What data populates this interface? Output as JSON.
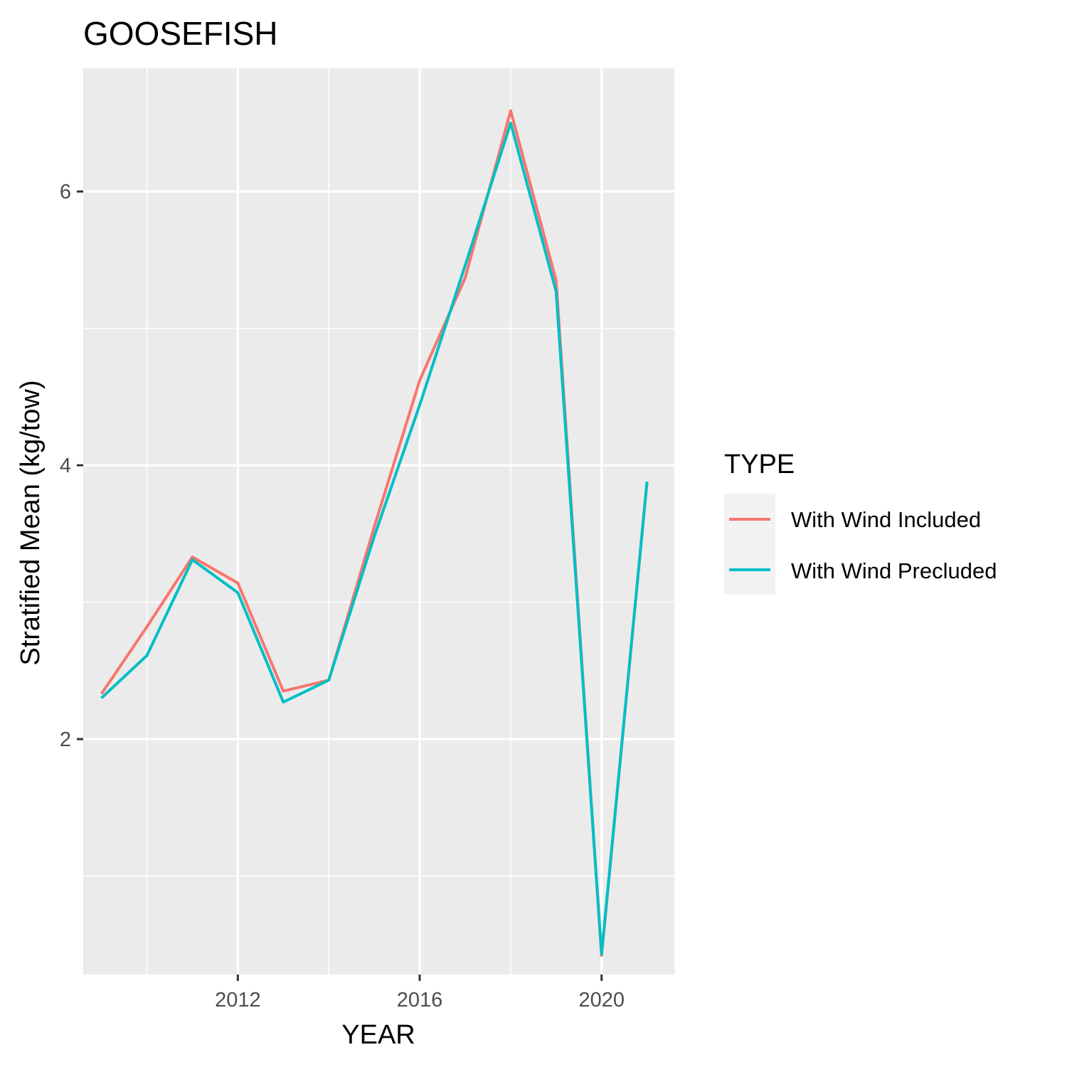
{
  "chart_data": {
    "type": "line",
    "title": "GOOSEFISH",
    "xlabel": "YEAR",
    "ylabel": "Stratified Mean (kg/tow)",
    "xlim": [
      2008.6,
      2021.6
    ],
    "ylim": [
      0.28,
      6.9
    ],
    "x_ticks": [
      2012,
      2016,
      2020
    ],
    "x_tick_labels": [
      "2012",
      "2016",
      "2020"
    ],
    "y_ticks": [
      2,
      4,
      6
    ],
    "y_tick_labels": [
      "2",
      "4",
      "6"
    ],
    "grid": true,
    "legend": {
      "title": "TYPE",
      "placement": "right"
    },
    "x": [
      2009,
      2010,
      2011,
      2012,
      2013,
      2014,
      2015,
      2016,
      2017,
      2018,
      2019,
      2020,
      2021
    ],
    "series": [
      {
        "name": "With Wind Included",
        "color": "#F8766D",
        "values": [
          2.33,
          2.82,
          3.33,
          3.14,
          2.35,
          2.43,
          3.55,
          4.62,
          5.37,
          6.59,
          5.35,
          0.42,
          3.88
        ]
      },
      {
        "name": "With Wind Precluded",
        "color": "#00BFC4",
        "values": [
          2.3,
          2.61,
          3.31,
          3.07,
          2.27,
          2.43,
          3.48,
          4.44,
          5.46,
          6.5,
          5.27,
          0.43,
          3.88
        ]
      }
    ]
  }
}
